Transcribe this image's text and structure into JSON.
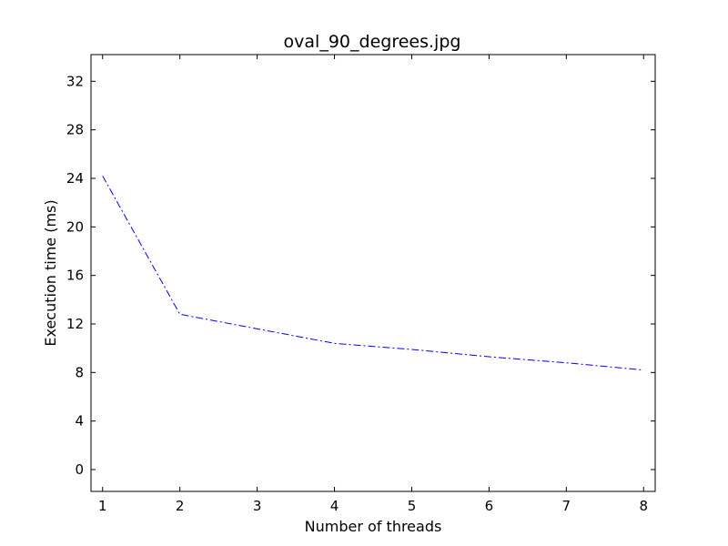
{
  "chart_data": {
    "type": "line",
    "title": "oval_90_degrees.jpg",
    "xlabel": "Number of threads",
    "ylabel": "Execution time (ms)",
    "x": [
      1,
      2,
      3,
      4,
      5,
      6,
      7,
      8
    ],
    "series": [
      {
        "values": [
          24.2,
          12.8,
          11.6,
          10.4,
          9.9,
          9.3,
          8.8,
          8.2
        ],
        "color": "#0000ff",
        "line_style": "dash-dot"
      }
    ],
    "xlim": [
      0.85,
      8.15
    ],
    "ylim": [
      -1.8,
      34.2
    ],
    "xticks": [
      1,
      2,
      3,
      4,
      5,
      6,
      7,
      8
    ],
    "yticks": [
      0,
      4,
      8,
      12,
      16,
      20,
      24,
      28,
      32
    ],
    "xtick_labels": [
      "1",
      "2",
      "3",
      "4",
      "5",
      "6",
      "7",
      "8"
    ],
    "ytick_labels": [
      "0",
      "4",
      "8",
      "12",
      "16",
      "20",
      "24",
      "28",
      "32"
    ],
    "grid": false,
    "legend": "none"
  }
}
